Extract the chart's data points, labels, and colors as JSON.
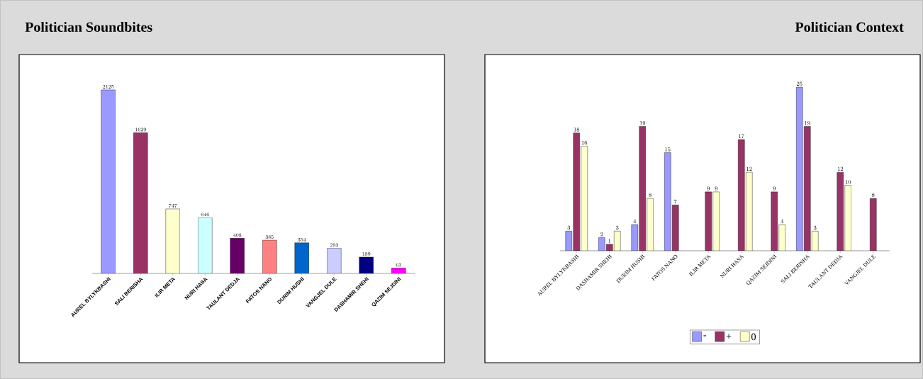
{
  "chart_data": [
    {
      "type": "bar",
      "title": "Politician Soundbites",
      "categories": [
        "AUREL BYLYKBASHI",
        "SALI BERISHA",
        "ILIR META",
        "NURI HASA",
        "TAULANT DEDJA",
        "FATOS NANO",
        "DURIM HUSHI",
        "VANGJEL DULE",
        "DASHAMIR SHEHI",
        "QAZIM SEJDINI"
      ],
      "values": [
        2125,
        1629,
        747,
        646,
        408,
        385,
        354,
        293,
        189,
        63
      ],
      "colors": [
        "#9999ff",
        "#993366",
        "#ffffcc",
        "#ccffff",
        "#660066",
        "#ff8080",
        "#0066cc",
        "#ccccff",
        "#000080",
        "#ff00ff"
      ],
      "data_labels": true
    },
    {
      "type": "bar",
      "title": "Politician Context",
      "categories": [
        "AUREL BYLYKBASHI",
        "DASHAMIR SHEHI",
        "DURIM HUSHI",
        "FATOS NANO",
        "ILIR META",
        "NURI HASA",
        "QAZIM SEJDINI",
        "SALI BERISHA",
        "TAULANT DEDJA",
        "VANGJEL DULE"
      ],
      "series": [
        {
          "name": "-",
          "color": "#9999ff",
          "values": [
            3,
            2,
            4,
            15,
            null,
            null,
            null,
            25,
            null,
            null
          ]
        },
        {
          "name": "+",
          "color": "#993366",
          "values": [
            18,
            1,
            19,
            7,
            9,
            17,
            9,
            19,
            12,
            8
          ]
        },
        {
          "name": "0",
          "color": "#ffffcc",
          "values": [
            16,
            3,
            8,
            null,
            9,
            12,
            4,
            3,
            10,
            null
          ]
        }
      ],
      "data_labels": true,
      "legend": "bottom"
    }
  ]
}
